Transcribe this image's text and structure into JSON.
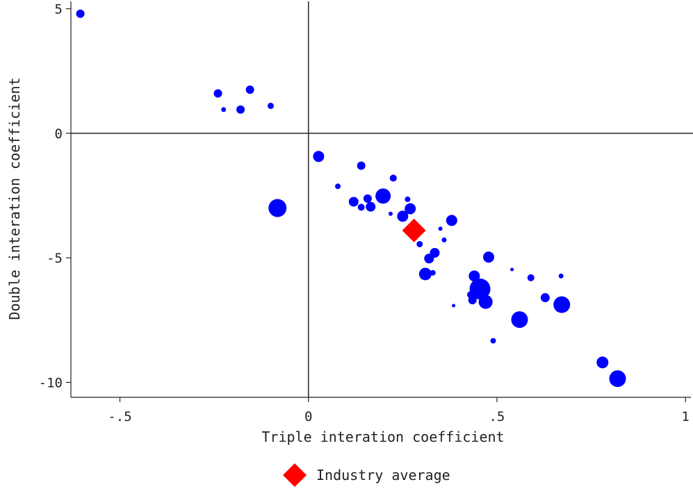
{
  "chart_data": {
    "type": "scatter",
    "xlabel": "Triple interation coefficient",
    "ylabel": "Double interation coefficient",
    "xlim": [
      -0.63,
      1.02
    ],
    "ylim": [
      -10.6,
      5.35
    ],
    "xticks": [
      -0.5,
      0,
      0.5,
      1
    ],
    "xtick_labels": [
      "-.5",
      "0",
      ".5",
      "1"
    ],
    "yticks": [
      5,
      0,
      -5,
      -10
    ],
    "ytick_labels": [
      "5",
      "0",
      "-5",
      "-10"
    ],
    "reference_lines": {
      "x": 0,
      "y": 0
    },
    "grid": false,
    "legend_position": "bottom-center",
    "point_color": "#0000ff",
    "average_color": "#ff0000",
    "points": [
      {
        "x": -0.605,
        "y": 4.8,
        "r": 6
      },
      {
        "x": -0.24,
        "y": 1.6,
        "r": 6
      },
      {
        "x": -0.225,
        "y": 0.95,
        "r": 3.5
      },
      {
        "x": -0.18,
        "y": 0.95,
        "r": 6
      },
      {
        "x": -0.155,
        "y": 1.75,
        "r": 6
      },
      {
        "x": -0.1,
        "y": 1.1,
        "r": 4.5
      },
      {
        "x": -0.082,
        "y": -3.0,
        "r": 13
      },
      {
        "x": 0.027,
        "y": -0.93,
        "r": 8
      },
      {
        "x": 0.078,
        "y": -2.13,
        "r": 4
      },
      {
        "x": 0.12,
        "y": -2.75,
        "r": 7
      },
      {
        "x": 0.14,
        "y": -1.3,
        "r": 6
      },
      {
        "x": 0.14,
        "y": -2.97,
        "r": 5
      },
      {
        "x": 0.157,
        "y": -2.62,
        "r": 6
      },
      {
        "x": 0.165,
        "y": -2.95,
        "r": 7
      },
      {
        "x": 0.198,
        "y": -2.52,
        "r": 11
      },
      {
        "x": 0.218,
        "y": -3.23,
        "r": 3
      },
      {
        "x": 0.225,
        "y": -1.8,
        "r": 5
      },
      {
        "x": 0.25,
        "y": -3.33,
        "r": 8
      },
      {
        "x": 0.263,
        "y": -2.65,
        "r": 4
      },
      {
        "x": 0.27,
        "y": -3.03,
        "r": 8
      },
      {
        "x": 0.295,
        "y": -4.45,
        "r": 4.5
      },
      {
        "x": 0.31,
        "y": -5.65,
        "r": 9
      },
      {
        "x": 0.32,
        "y": -5.03,
        "r": 7
      },
      {
        "x": 0.33,
        "y": -5.6,
        "r": 4
      },
      {
        "x": 0.335,
        "y": -4.8,
        "r": 7
      },
      {
        "x": 0.35,
        "y": -3.83,
        "r": 3
      },
      {
        "x": 0.36,
        "y": -4.28,
        "r": 3.5
      },
      {
        "x": 0.38,
        "y": -3.5,
        "r": 8
      },
      {
        "x": 0.385,
        "y": -6.92,
        "r": 2.5
      },
      {
        "x": 0.43,
        "y": -6.48,
        "r": 5
      },
      {
        "x": 0.435,
        "y": -6.7,
        "r": 6
      },
      {
        "x": 0.44,
        "y": -5.73,
        "r": 8
      },
      {
        "x": 0.455,
        "y": -6.25,
        "r": 15
      },
      {
        "x": 0.47,
        "y": -6.77,
        "r": 10
      },
      {
        "x": 0.478,
        "y": -4.97,
        "r": 8
      },
      {
        "x": 0.49,
        "y": -8.33,
        "r": 4
      },
      {
        "x": 0.54,
        "y": -5.47,
        "r": 2.5
      },
      {
        "x": 0.56,
        "y": -7.48,
        "r": 12
      },
      {
        "x": 0.59,
        "y": -5.8,
        "r": 5
      },
      {
        "x": 0.628,
        "y": -6.6,
        "r": 6.5
      },
      {
        "x": 0.67,
        "y": -5.73,
        "r": 3.5
      },
      {
        "x": 0.672,
        "y": -6.88,
        "r": 12
      },
      {
        "x": 0.78,
        "y": -9.2,
        "r": 8.5
      },
      {
        "x": 0.82,
        "y": -9.85,
        "r": 12
      }
    ],
    "average": {
      "x": 0.28,
      "y": -3.9
    },
    "legend": [
      "Industry average"
    ]
  }
}
